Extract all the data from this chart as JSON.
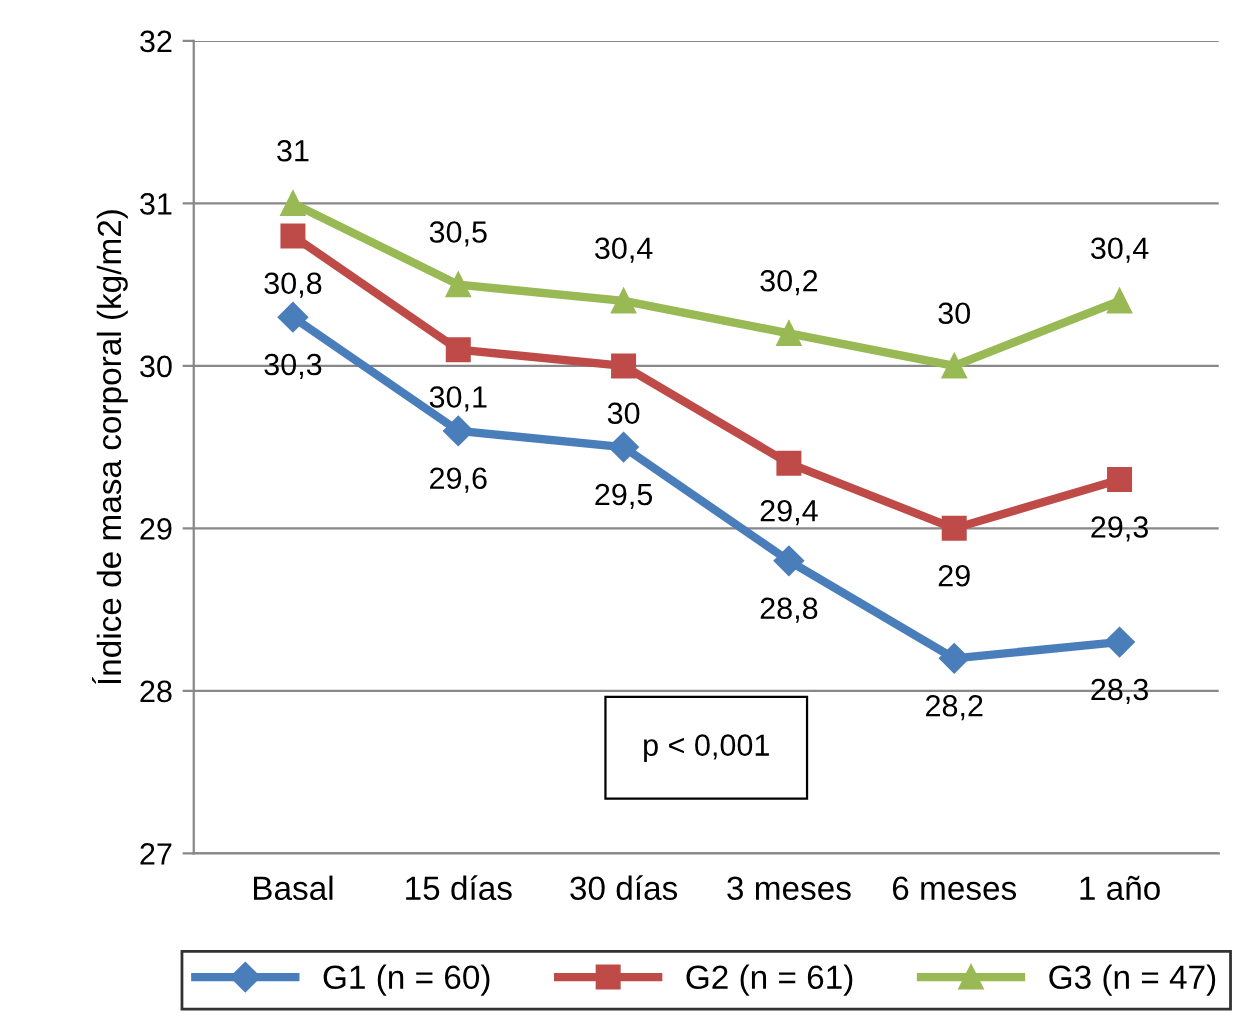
{
  "chart_data": {
    "type": "line",
    "ylabel": "Índice de masa corporal (kg/m2)",
    "categories": [
      "Basal",
      "15 días",
      "30 días",
      "3 meses",
      "6 meses",
      "1 año"
    ],
    "series": [
      {
        "name": "G1 (n = 60)",
        "color": "#4a7ebb",
        "marker": "diamond",
        "values": [
          30.3,
          29.6,
          29.5,
          28.8,
          28.2,
          28.3
        ],
        "value_labels": [
          "30,3",
          "29,6",
          "29,5",
          "28,8",
          "28,2",
          "28,3"
        ]
      },
      {
        "name": "G2 (n = 61)",
        "color": "#be4b48",
        "marker": "square",
        "values": [
          30.8,
          30.1,
          30,
          29.4,
          29,
          29.3
        ],
        "value_labels": [
          "30,8",
          "30,1",
          "30",
          "29,4",
          "29",
          "29,3"
        ]
      },
      {
        "name": "G3 (n = 47)",
        "color": "#98b954",
        "marker": "triangle",
        "values": [
          31,
          30.5,
          30.4,
          30.2,
          30,
          30.4
        ],
        "value_labels": [
          "31",
          "30,5",
          "30,4",
          "30,2",
          "30",
          "30,4"
        ]
      }
    ],
    "ylim": [
      27,
      32
    ],
    "yticks": [
      27,
      28,
      29,
      30,
      31,
      32
    ],
    "grid": "y",
    "legend": "bottom",
    "annotations": [
      "p < 0,001"
    ]
  }
}
